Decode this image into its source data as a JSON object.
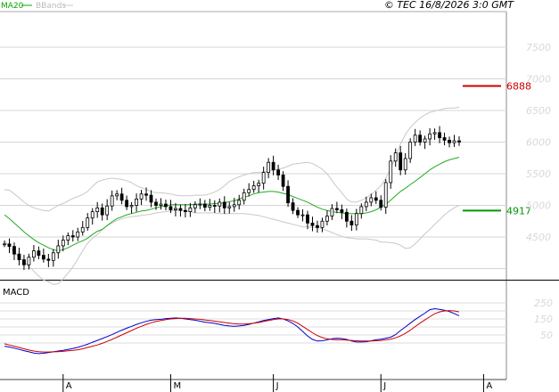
{
  "header": {
    "legend": [
      {
        "label": "MA20",
        "color": "#00aa00"
      },
      {
        "label": "BBands",
        "color": "#bbbbbb"
      }
    ],
    "copyright": "© TEC 16/8/2026 3:0 GMT"
  },
  "chart_data": [
    {
      "type": "candlestick",
      "title": "",
      "ylim": [
        3900,
        7800
      ],
      "y_ticks": [
        4500,
        5000,
        5500,
        6000,
        6500,
        7000,
        7500
      ],
      "x_ticks": [
        "A",
        "M",
        "J",
        "J",
        "A"
      ],
      "x_tick_index": [
        12,
        34,
        55,
        77,
        98
      ],
      "levels": [
        {
          "value": 6888,
          "label": "6888",
          "color": "#cc0000"
        },
        {
          "value": 4917,
          "label": "4917",
          "color": "#009900"
        }
      ],
      "price": [
        4390,
        4350,
        4230,
        4140,
        4060,
        4180,
        4280,
        4210,
        4150,
        4130,
        4250,
        4360,
        4450,
        4520,
        4500,
        4580,
        4650,
        4800,
        4900,
        4960,
        4850,
        4990,
        5150,
        5180,
        5080,
        4980,
        5000,
        5100,
        5180,
        5160,
        5050,
        5000,
        5020,
        4980,
        4930,
        4950,
        4920,
        4900,
        4960,
        5010,
        5020,
        4970,
        5000,
        4990,
        5050,
        4960,
        4980,
        5010,
        5080,
        5200,
        5250,
        5310,
        5350,
        5520,
        5680,
        5560,
        5480,
        5300,
        5040,
        4920,
        4850,
        4850,
        4720,
        4680,
        4650,
        4750,
        4830,
        4950,
        4930,
        4890,
        4750,
        4690,
        4870,
        4980,
        5050,
        5120,
        5080,
        4970,
        5360,
        5700,
        5830,
        5560,
        5740,
        6000,
        6110,
        6000,
        6050,
        6130,
        6150,
        6070,
        6030,
        5990,
        6020,
        6000
      ],
      "ma20": [
        4850,
        4790,
        4720,
        4650,
        4580,
        4520,
        4460,
        4410,
        4370,
        4330,
        4300,
        4280,
        4300,
        4330,
        4370,
        4410,
        4440,
        4480,
        4540,
        4590,
        4620,
        4680,
        4740,
        4790,
        4820,
        4850,
        4870,
        4890,
        4910,
        4920,
        4940,
        4960,
        4980,
        4990,
        5010,
        5010,
        5010,
        5010,
        5010,
        5020,
        5020,
        5020,
        5020,
        5030,
        5030,
        5040,
        5060,
        5070,
        5100,
        5130,
        5150,
        5180,
        5200,
        5210,
        5220,
        5220,
        5210,
        5190,
        5170,
        5140,
        5110,
        5080,
        5050,
        5010,
        4970,
        4940,
        4920,
        4900,
        4890,
        4880,
        4870,
        4870,
        4870,
        4870,
        4880,
        4900,
        4930,
        4970,
        5020,
        5080,
        5150,
        5220,
        5270,
        5330,
        5380,
        5440,
        5500,
        5560,
        5610,
        5650,
        5690,
        5720,
        5740,
        5760
      ],
      "bb_upper": [
        5250,
        5240,
        5180,
        5120,
        5050,
        5000,
        4960,
        4940,
        4920,
        4910,
        4950,
        5000,
        5030,
        5070,
        5110,
        5140,
        5170,
        5220,
        5300,
        5370,
        5400,
        5420,
        5430,
        5420,
        5410,
        5390,
        5360,
        5310,
        5280,
        5250,
        5220,
        5200,
        5200,
        5190,
        5180,
        5160,
        5150,
        5150,
        5150,
        5160,
        5160,
        5160,
        5180,
        5210,
        5250,
        5310,
        5380,
        5420,
        5450,
        5480,
        5500,
        5520,
        5520,
        5530,
        5540,
        5560,
        5570,
        5590,
        5620,
        5650,
        5660,
        5670,
        5680,
        5660,
        5620,
        5570,
        5500,
        5390,
        5290,
        5200,
        5100,
        5050,
        5050,
        5080,
        5120,
        5170,
        5240,
        5310,
        5430,
        5580,
        5770,
        5970,
        6120,
        6230,
        6310,
        6380,
        6430,
        6470,
        6490,
        6510,
        6530,
        6540,
        6540,
        6550
      ],
      "bb_lower": [
        4450,
        4340,
        4260,
        4180,
        4110,
        4040,
        3960,
        3880,
        3820,
        3790,
        3750,
        3760,
        3840,
        3930,
        4030,
        4150,
        4280,
        4400,
        4480,
        4540,
        4620,
        4680,
        4720,
        4760,
        4790,
        4810,
        4820,
        4830,
        4840,
        4850,
        4860,
        4880,
        4890,
        4900,
        4910,
        4920,
        4920,
        4910,
        4900,
        4880,
        4880,
        4880,
        4880,
        4880,
        4870,
        4870,
        4870,
        4870,
        4870,
        4870,
        4860,
        4850,
        4840,
        4820,
        4800,
        4780,
        4760,
        4740,
        4720,
        4700,
        4680,
        4660,
        4660,
        4650,
        4650,
        4630,
        4600,
        4570,
        4540,
        4510,
        4490,
        4480,
        4470,
        4470,
        4470,
        4460,
        4450,
        4420,
        4420,
        4410,
        4400,
        4370,
        4320,
        4330,
        4390,
        4470,
        4550,
        4620,
        4700,
        4770,
        4850,
        4910,
        4960,
        5000
      ]
    },
    {
      "type": "line",
      "title": "MACD",
      "ylim": [
        -75,
        310
      ],
      "y_ticks": [
        0,
        50,
        100,
        150,
        200,
        250
      ],
      "x_ticks": [
        "A",
        "M",
        "J",
        "J",
        "A"
      ],
      "x_tick_index": [
        12,
        34,
        55,
        77,
        98
      ],
      "series": [
        {
          "color": "#0000cc",
          "values": [
            -20,
            -25,
            -32,
            -40,
            -48,
            -55,
            -62,
            -66,
            -64,
            -60,
            -55,
            -50,
            -46,
            -40,
            -34,
            -27,
            -18,
            -8,
            5,
            16,
            28,
            40,
            52,
            66,
            80,
            92,
            104,
            116,
            126,
            135,
            142,
            146,
            148,
            152,
            154,
            156,
            154,
            150,
            146,
            142,
            136,
            130,
            126,
            122,
            116,
            110,
            106,
            104,
            106,
            110,
            116,
            124,
            132,
            140,
            146,
            152,
            156,
            150,
            138,
            122,
            100,
            72,
            44,
            22,
            12,
            14,
            20,
            26,
            30,
            28,
            22,
            12,
            6,
            6,
            8,
            14,
            20,
            24,
            30,
            36,
            52,
            78,
            100,
            124,
            146,
            166,
            186,
            208,
            214,
            210,
            204,
            196,
            184,
            170
          ]
        },
        {
          "color": "#cc0000",
          "values": [
            -5,
            -12,
            -20,
            -28,
            -36,
            -44,
            -50,
            -54,
            -56,
            -56,
            -55,
            -54,
            -52,
            -49,
            -46,
            -42,
            -36,
            -28,
            -20,
            -12,
            -2,
            10,
            22,
            36,
            50,
            64,
            78,
            92,
            104,
            116,
            126,
            134,
            140,
            146,
            150,
            152,
            154,
            154,
            152,
            150,
            148,
            144,
            140,
            136,
            132,
            128,
            124,
            120,
            118,
            118,
            120,
            124,
            128,
            134,
            140,
            146,
            150,
            150,
            146,
            138,
            124,
            104,
            84,
            64,
            46,
            34,
            26,
            22,
            20,
            20,
            18,
            16,
            14,
            12,
            12,
            12,
            14,
            16,
            20,
            24,
            32,
            44,
            60,
            80,
            102,
            124,
            144,
            164,
            182,
            194,
            200,
            202,
            200,
            194
          ]
        }
      ]
    }
  ]
}
